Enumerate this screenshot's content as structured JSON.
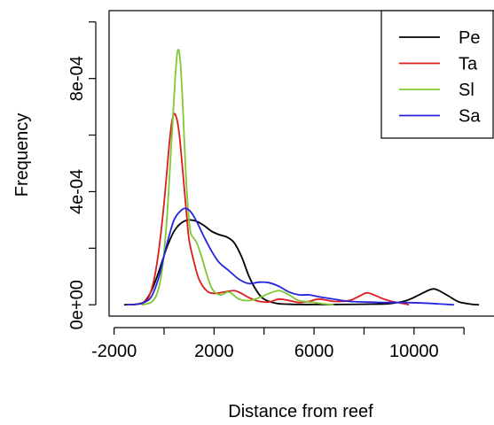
{
  "chart_data": {
    "type": "line",
    "title": "",
    "xlabel": "Distance from reef",
    "ylabel": "Frequency",
    "x_ticks": [
      {
        "value": -2000,
        "label": "-2000"
      },
      {
        "value": 2000,
        "label": "2000"
      },
      {
        "value": 6000,
        "label": "6000"
      },
      {
        "value": 10000,
        "label": "10000"
      }
    ],
    "x_minor_ticks": [
      0,
      4000,
      8000,
      12000
    ],
    "y_ticks": [
      {
        "value": 0,
        "label": "0e+00"
      },
      {
        "value": 0.0004,
        "label": "4e-04"
      },
      {
        "value": 0.0008,
        "label": "8e-04"
      }
    ],
    "y_minor_ticks": [
      0.0002,
      0.0006,
      0.001
    ],
    "xlim": [
      -2200,
      13200
    ],
    "ylim": [
      -4e-05,
      0.00104
    ],
    "grid": false,
    "legend_position": "top-right",
    "series": [
      {
        "name": "Pe",
        "color": "#000000",
        "x": [
          -1600,
          -1100,
          -800,
          -500,
          -200,
          100,
          400,
          700,
          1000,
          1300,
          1600,
          1900,
          2200,
          2500,
          2800,
          3100,
          3400,
          3700,
          4000,
          4500,
          5000,
          5500,
          6000,
          7000,
          8000,
          9000,
          9700,
          10200,
          10600,
          10800,
          11000,
          11400,
          11800,
          12300,
          12600
        ],
        "y": [
          0,
          2e-06,
          1e-05,
          5e-05,
          0.00012,
          0.0002,
          0.00026,
          0.00029,
          0.0003,
          0.000295,
          0.00028,
          0.00026,
          0.000248,
          0.00024,
          0.00022,
          0.00017,
          0.0001,
          5e-05,
          2e-05,
          5e-06,
          2e-06,
          1e-06,
          1e-06,
          1e-06,
          2e-06,
          4e-06,
          1.5e-05,
          3.5e-05,
          5.2e-05,
          5.6e-05,
          5e-05,
          3e-05,
          1e-05,
          2e-06,
          0
        ]
      },
      {
        "name": "Ta",
        "color": "#dd1c1c",
        "x": [
          -1500,
          -1100,
          -800,
          -600,
          -400,
          -200,
          0,
          200,
          300,
          400,
          500,
          600,
          700,
          800,
          900,
          1000,
          1200,
          1400,
          1700,
          2000,
          2400,
          2800,
          3100,
          3400,
          3800,
          4200,
          4600,
          5000,
          5400,
          5800,
          6200,
          6800,
          7400,
          7800,
          8100,
          8400,
          8800,
          9200,
          9600,
          9800
        ],
        "y": [
          0,
          2e-06,
          1e-05,
          3e-05,
          9e-05,
          0.0002,
          0.00036,
          0.00056,
          0.00064,
          0.000675,
          0.00066,
          0.00061,
          0.00052,
          0.00042,
          0.00032,
          0.00023,
          0.00015,
          9e-05,
          5e-05,
          4e-05,
          4.5e-05,
          5e-05,
          4e-05,
          2.5e-05,
          1.2e-05,
          1e-05,
          2e-05,
          1.5e-05,
          8e-06,
          1.2e-05,
          2e-05,
          1.2e-05,
          1.5e-05,
          3e-05,
          4.2e-05,
          3.5e-05,
          2e-05,
          1e-05,
          4e-06,
          0
        ]
      },
      {
        "name": "Sl",
        "color": "#7ec832",
        "x": [
          -900,
          -700,
          -500,
          -300,
          -100,
          100,
          300,
          450,
          550,
          650,
          750,
          850,
          950,
          1050,
          1150,
          1300,
          1500,
          1700,
          1900,
          2100,
          2300,
          2600,
          3000,
          3400,
          3800,
          4200,
          4600,
          5000,
          5400,
          6000,
          6400,
          6800
        ],
        "y": [
          0,
          3e-06,
          1e-05,
          3.5e-05,
          0.00011,
          0.00029,
          0.00058,
          0.00081,
          0.0009,
          0.00086,
          0.0007,
          0.0005,
          0.00035,
          0.00026,
          0.00024,
          0.00022,
          0.00017,
          0.00011,
          6e-05,
          4e-05,
          3.5e-05,
          4.5e-05,
          2e-05,
          1.5e-05,
          2.5e-05,
          4e-05,
          5e-05,
          3.5e-05,
          1.5e-05,
          8e-06,
          3e-06,
          0
        ]
      },
      {
        "name": "Sa",
        "color": "#2424e0",
        "x": [
          -1500,
          -1100,
          -800,
          -500,
          -200,
          100,
          400,
          700,
          900,
          1100,
          1300,
          1600,
          1900,
          2200,
          2600,
          3000,
          3400,
          3800,
          4200,
          4600,
          5000,
          5400,
          5800,
          6200,
          6800,
          7400,
          8000,
          8800,
          9600,
          10400,
          11000,
          11600
        ],
        "y": [
          0,
          2e-06,
          8e-06,
          3e-05,
          0.0001,
          0.00021,
          0.0003,
          0.000335,
          0.00034,
          0.000325,
          0.000295,
          0.00024,
          0.00019,
          0.00015,
          0.00012,
          9e-05,
          7.5e-05,
          8e-05,
          7.8e-05,
          6.5e-05,
          4.5e-05,
          3.5e-05,
          3.5e-05,
          2.8e-05,
          2e-05,
          1.2e-05,
          1e-05,
          8e-06,
          8e-06,
          6e-06,
          3e-06,
          0
        ]
      }
    ]
  }
}
